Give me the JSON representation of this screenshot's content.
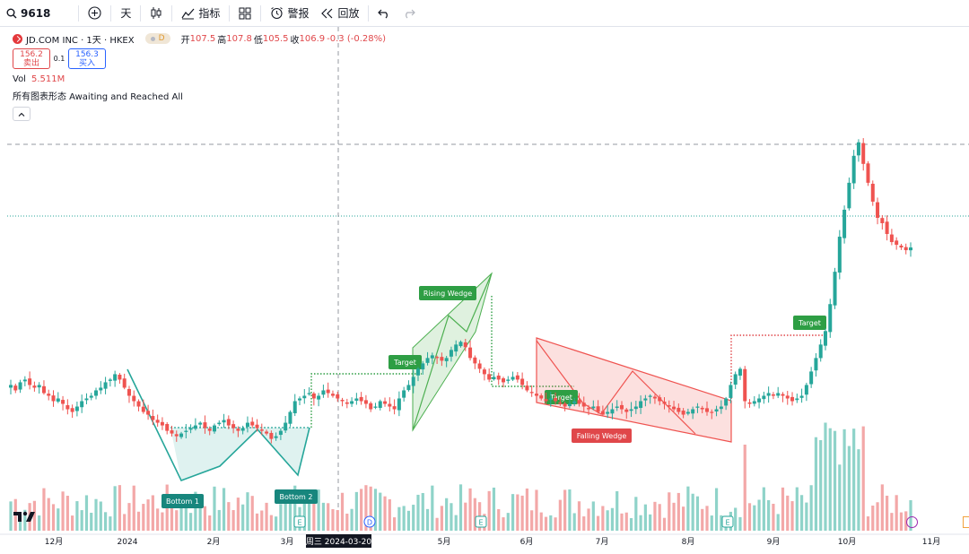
{
  "toolbar": {
    "symbol": "9618",
    "interval": "天",
    "indicators": "指标",
    "alert": "警报",
    "replay": "回放"
  },
  "legend": {
    "name": "JD.COM INC · 1天 · HKEX",
    "badge": "D",
    "open_k": "开",
    "open_v": "107.5",
    "high_k": "高",
    "high_v": "107.8",
    "low_k": "低",
    "low_v": "105.5",
    "close_k": "收",
    "close_v": "106.9",
    "change": "-0.3 (-0.28%)",
    "sell_price": "156.2",
    "sell_label": "卖出",
    "spread": "0.1",
    "buy_price": "156.3",
    "buy_label": "买入",
    "vol_label": "Vol",
    "vol_value": "5.511M",
    "pattern_label": "所有图表形态 Awaiting and Reached All"
  },
  "colors": {
    "up": "#26a69a",
    "down": "#ef5350",
    "up_vol": "#8fd3c9",
    "down_vol": "#f3a8a8",
    "green_label": "#2e9e44",
    "red_label": "#e0474a"
  },
  "chart_data": {
    "type": "candlestick",
    "x_tick_labels": [
      "12月",
      "2024",
      "2月",
      "3月",
      "5月",
      "6月",
      "7月",
      "8月",
      "9月",
      "10月",
      "11月"
    ],
    "crosshair_date": "周三 2024-03-20",
    "closes_approx": [
      90,
      88,
      91,
      92,
      90,
      89,
      90,
      87,
      86,
      84,
      85,
      83,
      81,
      80,
      82,
      84,
      85,
      86,
      88,
      89,
      91,
      92,
      94,
      92,
      89,
      86,
      84,
      82,
      80,
      79,
      77,
      76,
      75,
      73,
      72,
      71,
      72,
      73,
      74,
      75,
      76,
      74,
      73,
      75,
      76,
      77,
      75,
      74,
      73,
      74,
      76,
      75,
      74,
      73,
      72,
      70,
      71,
      73,
      76,
      80,
      84,
      85,
      86,
      87,
      85,
      86,
      88,
      87,
      86,
      85,
      84,
      83,
      84,
      85,
      84,
      83,
      81,
      82,
      84,
      83,
      82,
      81,
      85,
      88,
      90,
      93,
      96,
      98,
      100,
      101,
      100,
      99,
      100,
      103,
      105,
      106,
      104,
      100,
      98,
      96,
      94,
      92,
      93,
      92,
      91,
      92,
      93,
      92,
      90,
      88,
      87,
      86,
      85,
      84,
      85,
      84,
      83,
      82,
      83,
      84,
      83,
      82,
      81,
      82,
      80,
      79,
      80,
      81,
      82,
      81,
      80,
      81,
      82,
      84,
      85,
      86,
      85,
      84,
      83,
      82,
      81,
      80,
      79,
      80,
      81,
      82,
      81,
      80,
      80,
      81,
      82,
      85,
      90,
      94,
      96,
      84,
      83,
      84,
      85,
      86,
      87,
      86,
      87,
      86,
      85,
      84,
      85,
      86,
      90,
      95,
      100,
      105,
      110,
      120,
      132,
      145,
      155,
      165,
      175,
      180,
      172,
      165,
      158,
      152,
      150,
      146,
      143,
      142,
      141,
      140,
      141
    ],
    "series": [
      {
        "name": "Vol",
        "type": "volume"
      }
    ],
    "patterns": [
      {
        "label": "Bottom 1"
      },
      {
        "label": "Bottom 2"
      },
      {
        "label": "Target"
      },
      {
        "label": "Rising Wedge"
      },
      {
        "label": "Target"
      },
      {
        "label": "Falling Wedge"
      },
      {
        "label": "Target"
      }
    ],
    "event_badges": [
      "E",
      "D",
      "E",
      "E"
    ]
  }
}
